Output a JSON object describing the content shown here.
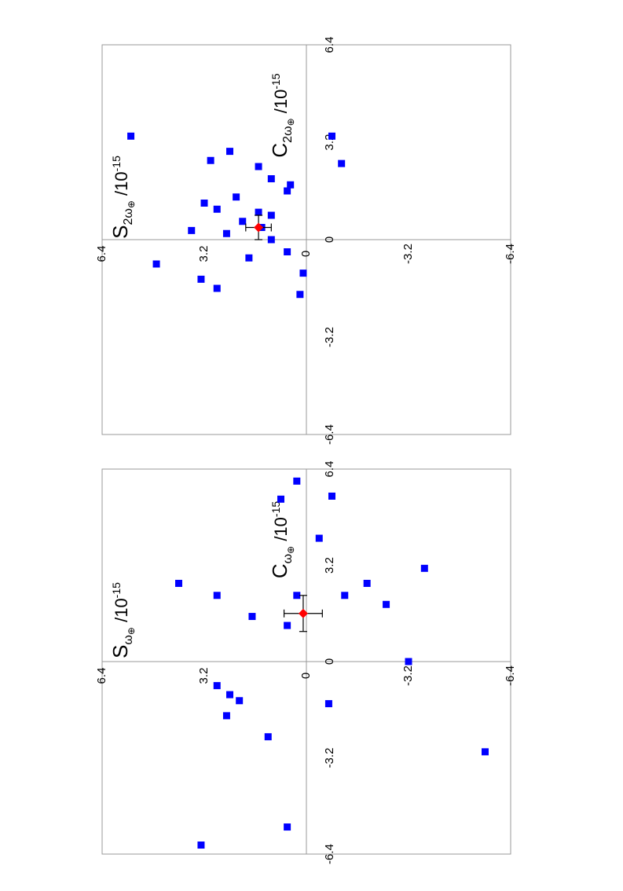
{
  "chart_data": [
    {
      "type": "scatter",
      "title": "",
      "xlabel_main": "C",
      "xlabel_sub": "2ω",
      "xlabel_sub2": "⊕",
      "xlabel_rest": " /10",
      "xlabel_exp": "-15",
      "ylabel_main": "S",
      "ylabel_sub": "2ω",
      "ylabel_sub2": "⊕",
      "ylabel_rest": " /10",
      "ylabel_exp": "-15",
      "xlim": [
        -6.4,
        6.4
      ],
      "ylim": [
        -6.4,
        6.4
      ],
      "xticks": [
        "-6.4",
        "-3.2",
        "0",
        "3.2",
        "6.4"
      ],
      "yticks": [
        "-6.4",
        "-3.2",
        "0",
        "3.2",
        "6.4"
      ],
      "grid": false,
      "colors": {
        "points": "#0000ff",
        "mean": "#ff0000",
        "axes": "#999999",
        "errorbar": "#000000"
      },
      "series": [
        {
          "marker": "square",
          "x": [
            3.4,
            3.4,
            2.9,
            2.6,
            2.5,
            2.4,
            2.0,
            1.8,
            1.6,
            1.4,
            1.2,
            1.0,
            0.9,
            0.8,
            0.6,
            0.4,
            0.3,
            0.2,
            0.0,
            -0.4,
            -0.6,
            -0.8,
            -1.1,
            -1.3,
            -1.6,
            -1.8
          ],
          "y": [
            -0.8,
            5.5,
            2.4,
            3.0,
            -1.1,
            1.5,
            1.1,
            0.5,
            0.6,
            2.2,
            3.2,
            2.8,
            1.5,
            1.1,
            2.0,
            1.4,
            3.6,
            2.5,
            1.1,
            0.6,
            1.8,
            4.7,
            0.1,
            3.3,
            2.8,
            0.2
          ]
        },
        {
          "marker": "diamond",
          "x": [
            0.4
          ],
          "y": [
            1.5
          ],
          "xerr": [
            0.4
          ],
          "yerr": [
            0.4
          ]
        }
      ]
    },
    {
      "type": "scatter",
      "title": "",
      "xlabel_main": "C",
      "xlabel_sub": "ω",
      "xlabel_sub2": "⊕",
      "xlabel_rest": " /10",
      "xlabel_exp": "-15",
      "ylabel_main": "S",
      "ylabel_sub": "ω",
      "ylabel_sub2": "⊕",
      "ylabel_rest": " /10",
      "ylabel_exp": "-15",
      "xlim": [
        -6.4,
        6.4
      ],
      "ylim": [
        -6.4,
        6.4
      ],
      "xticks": [
        "-6.4",
        "-3.2",
        "0",
        "3.2",
        "6.4"
      ],
      "yticks": [
        "-6.4",
        "-3.2",
        "0",
        "3.2",
        "6.4"
      ],
      "grid": false,
      "colors": {
        "points": "#0000ff",
        "mean": "#ff0000",
        "axes": "#999999",
        "errorbar": "#000000"
      },
      "series": [
        {
          "marker": "square",
          "x": [
            6.0,
            5.5,
            5.4,
            4.1,
            3.1,
            2.6,
            2.6,
            2.2,
            2.2,
            2.2,
            1.9,
            1.5,
            1.2,
            0.0,
            -0.8,
            -1.1,
            -1.3,
            -1.4,
            -1.8,
            -2.5,
            -3.0,
            -5.5,
            -6.1
          ],
          "y": [
            0.3,
            -0.8,
            0.8,
            -0.4,
            -3.7,
            -1.9,
            4.0,
            2.8,
            0.3,
            -1.2,
            -2.5,
            1.7,
            0.6,
            -3.2,
            2.8,
            2.4,
            2.1,
            -0.7,
            2.5,
            1.2,
            -5.6,
            0.6,
            3.3
          ]
        },
        {
          "marker": "diamond",
          "x": [
            1.6
          ],
          "y": [
            0.1
          ],
          "xerr": [
            0.6
          ],
          "yerr": [
            0.6
          ]
        }
      ]
    }
  ]
}
